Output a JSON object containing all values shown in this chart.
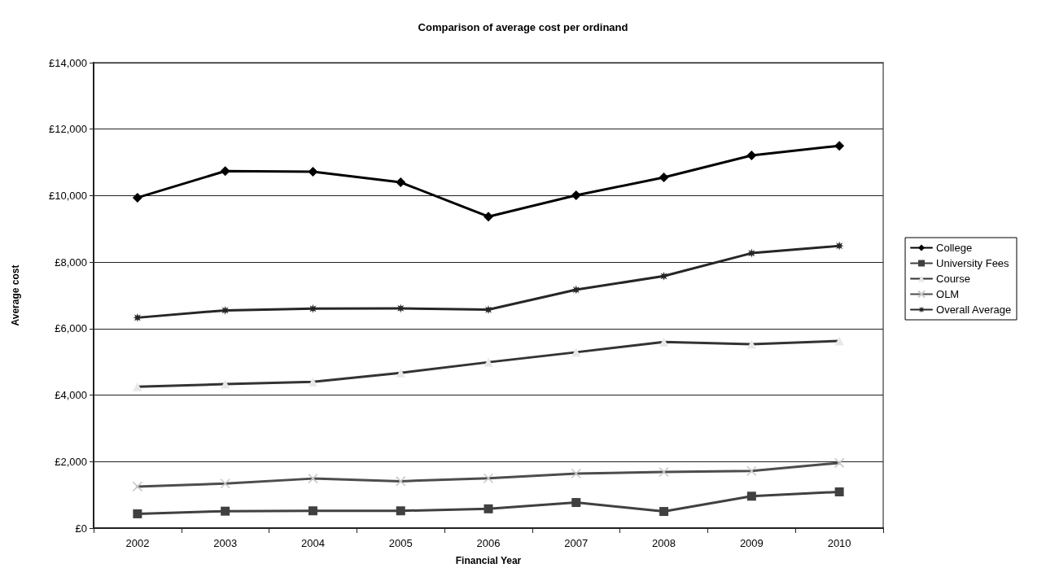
{
  "chart_data": {
    "type": "line",
    "title": "Comparison of average cost per ordinand",
    "xlabel": "Financial Year",
    "ylabel": "Average cost",
    "categories": [
      "2002",
      "2003",
      "2004",
      "2005",
      "2006",
      "2007",
      "2008",
      "2009",
      "2010"
    ],
    "series": [
      {
        "name": "College",
        "color": "#000000",
        "marker": "diamond",
        "colors": [
          "#000000",
          "#000000",
          "#000000",
          "#000000",
          "#000000",
          "#000000",
          "#000000",
          "#000000",
          "#000000"
        ],
        "values": [
          9940,
          10740,
          10720,
          10400,
          9370,
          10010,
          10550,
          11210,
          11500
        ]
      },
      {
        "name": "University Fees",
        "color": "#404040",
        "marker": "square",
        "colors": [
          "#404040",
          "#404040",
          "#404040",
          "#404040",
          "#404040",
          "#404040",
          "#404040",
          "#404040",
          "#404040"
        ],
        "values": [
          430,
          510,
          520,
          520,
          580,
          770,
          500,
          960,
          1090
        ]
      },
      {
        "name": "Course",
        "color": "#333333",
        "marker": "triangle",
        "colors": [
          "#e8e8e8",
          "#e8e8e8",
          "#e8e8e8",
          "#e8e8e8",
          "#e8e8e8",
          "#e8e8e8",
          "#e8e8e8",
          "#e8e8e8",
          "#e8e8e8"
        ],
        "values": [
          4250,
          4330,
          4400,
          4670,
          4990,
          5290,
          5600,
          5530,
          5630
        ]
      },
      {
        "name": "OLM",
        "color": "#4d4d4d",
        "marker": "cross",
        "colors": [
          "#c8c8c8",
          "#c8c8c8",
          "#c8c8c8",
          "#c8c8c8",
          "#c8c8c8",
          "#c8c8c8",
          "#c8c8c8",
          "#c8c8c8",
          "#c8c8c8"
        ],
        "values": [
          1250,
          1340,
          1490,
          1410,
          1500,
          1640,
          1690,
          1720,
          1960
        ]
      },
      {
        "name": "Overall Average",
        "color": "#262626",
        "marker": "star",
        "colors": [
          "#262626",
          "#262626",
          "#262626",
          "#262626",
          "#262626",
          "#262626",
          "#262626",
          "#262626",
          "#262626"
        ],
        "values": [
          6330,
          6550,
          6600,
          6610,
          6570,
          7170,
          7580,
          8270,
          8490
        ]
      }
    ],
    "ylim": [
      0,
      14000
    ],
    "yticks": [
      {
        "value": 0,
        "label": "£0"
      },
      {
        "value": 2000,
        "label": "£2,000"
      },
      {
        "value": 4000,
        "label": "£4,000"
      },
      {
        "value": 6000,
        "label": "£6,000"
      },
      {
        "value": 8000,
        "label": "£8,000"
      },
      {
        "value": 10000,
        "label": "£10,000"
      },
      {
        "value": 12000,
        "label": "£12,000"
      },
      {
        "value": 14000,
        "label": "£14,000"
      }
    ],
    "grid": "y",
    "legend": "right",
    "line_style": "solid"
  }
}
